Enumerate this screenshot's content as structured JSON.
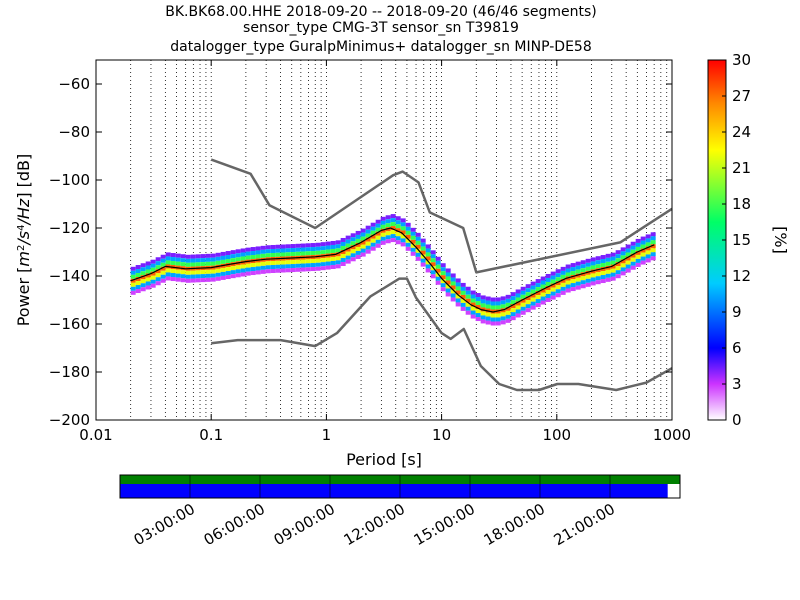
{
  "title": {
    "line1": "BK.BK68.00.HHE   2018-09-20 -- 2018-09-20  (46/46 segments)",
    "line2": "sensor_type CMG-3T sensor_sn T39819",
    "line3": "datalogger_type GuralpMinimus+ datalogger_sn MINP-DE58"
  },
  "chart_data": {
    "type": "heatmap",
    "title": "BK.BK68.00.HHE   2018-09-20 -- 2018-09-20  (46/46 segments)",
    "xlabel": "Period [s]",
    "ylabel": "Power [m²/s⁴/Hz] [dB]",
    "x_scale": "log",
    "xlim": [
      0.01,
      1000
    ],
    "ylim": [
      -200,
      -50
    ],
    "x_ticks": [
      0.01,
      0.1,
      1,
      10,
      100,
      1000
    ],
    "x_tick_labels": [
      "0.01",
      "0.1",
      "1",
      "10",
      "100",
      "1000"
    ],
    "y_ticks": [
      -200,
      -180,
      -160,
      -140,
      -120,
      -100,
      -80,
      -60
    ],
    "y_tick_labels": [
      "−200",
      "−180",
      "−160",
      "−140",
      "−120",
      "−100",
      "−80",
      "−60"
    ],
    "grid": "dotted vertical",
    "colorbar": {
      "label": "[%]",
      "range": [
        0,
        30
      ],
      "ticks": [
        0,
        3,
        6,
        9,
        12,
        15,
        18,
        21,
        24,
        27,
        30
      ],
      "colormap": [
        "#ffffff",
        "#cc33ff",
        "#0000ff",
        "#00ccff",
        "#00ff66",
        "#ffff00",
        "#ff8800",
        "#ff0000"
      ]
    },
    "nhnm_curve": {
      "color": "#666666",
      "x": [
        0.1,
        0.22,
        0.32,
        0.8,
        3.8,
        4.6,
        6.3,
        7.9,
        15.4,
        20,
        354.8,
        1000
      ],
      "y": [
        -91.5,
        -97.4,
        -110.5,
        -120,
        -98,
        -96.5,
        -101,
        -113.5,
        -120,
        -138.5,
        -126,
        -112
      ]
    },
    "nlnm_curve": {
      "color": "#666666",
      "x": [
        0.1,
        0.17,
        0.4,
        0.8,
        1.24,
        2.4,
        4.3,
        5,
        6,
        10,
        12,
        15.6,
        21.9,
        31.6,
        45,
        70,
        101,
        154,
        328,
        600,
        1000
      ],
      "y": [
        -168,
        -166.7,
        -166.7,
        -169.2,
        -163.7,
        -148.6,
        -141.1,
        -141.1,
        -149,
        -163.8,
        -166.2,
        -162.1,
        -177.5,
        -185,
        -187.5,
        -187.5,
        -185,
        -185,
        -187.5,
        -184.4,
        -178.4
      ]
    },
    "mode_line": {
      "color": "#000000",
      "x": [
        0.02,
        0.03,
        0.04,
        0.06,
        0.1,
        0.15,
        0.2,
        0.3,
        0.5,
        0.8,
        1.2,
        2,
        3,
        3.6,
        4.5,
        6,
        8,
        10,
        14,
        18,
        22,
        28,
        35,
        50,
        80,
        120,
        200,
        300,
        500,
        700
      ],
      "y": [
        -142,
        -139,
        -136,
        -137,
        -136.5,
        -135,
        -134,
        -133,
        -132.5,
        -132,
        -131,
        -126,
        -121,
        -120,
        -122,
        -128,
        -135,
        -141,
        -148,
        -152,
        -154,
        -155,
        -154,
        -150,
        -145,
        -141,
        -138,
        -136,
        -130,
        -127
      ]
    },
    "pdf_band_offsets": [
      {
        "dy": -3,
        "pct": 6
      },
      {
        "dy": -2,
        "pct": 12
      },
      {
        "dy": -1,
        "pct": 18
      },
      {
        "dy": 0,
        "pct": 27
      },
      {
        "dy": 1,
        "pct": 21
      },
      {
        "dy": 2,
        "pct": 12
      },
      {
        "dy": 3,
        "pct": 4
      }
    ]
  },
  "timeline": {
    "labels": [
      "03:00:00",
      "06:00:00",
      "09:00:00",
      "12:00:00",
      "15:00:00",
      "18:00:00",
      "21:00:00"
    ],
    "data_fraction": 0.978,
    "color_top": "#008000",
    "color_bottom": "#0000ff"
  }
}
